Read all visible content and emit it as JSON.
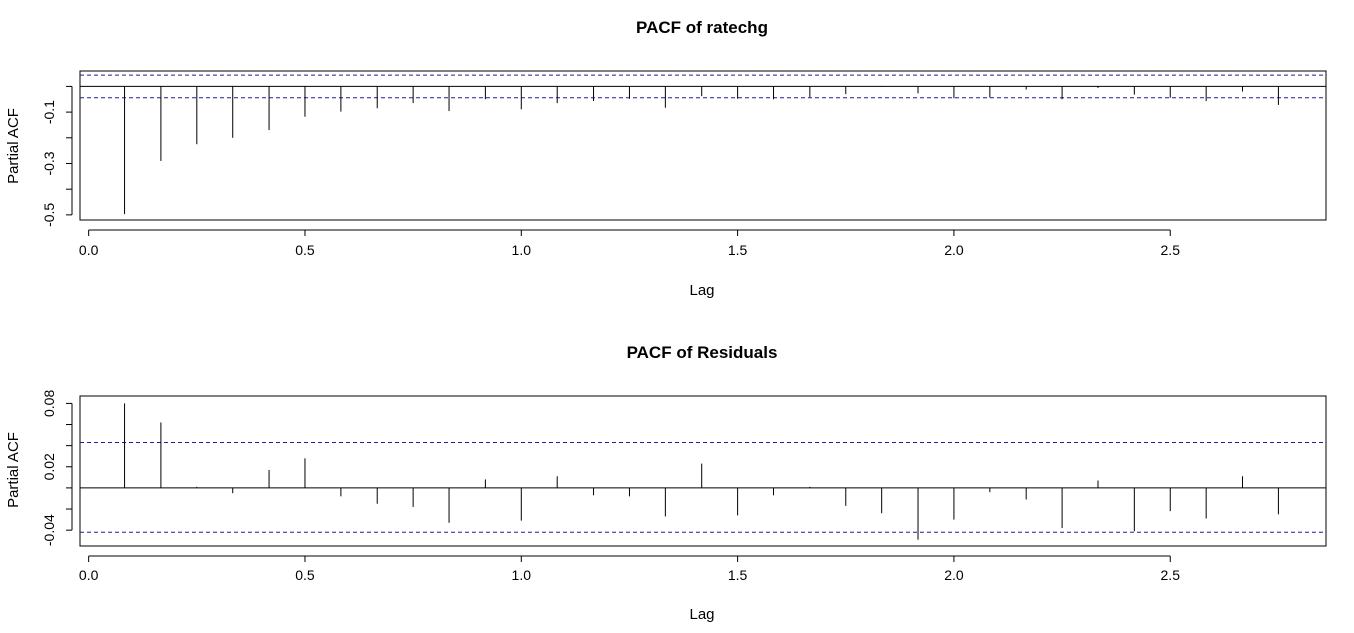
{
  "chart_data": [
    {
      "type": "bar",
      "title": "PACF of ratechg",
      "xlabel": "Lag",
      "ylabel": "Partial ACF",
      "xlim": [
        -0.02,
        2.86
      ],
      "ylim": [
        -0.52,
        0.06
      ],
      "x_ticks": [
        "0.0",
        "0.5",
        "1.0",
        "1.5",
        "2.0",
        "2.5"
      ],
      "y_ticks": [
        "-0.5",
        "-0.3",
        "-0.1"
      ],
      "y_tick_values": [
        -0.5,
        -0.4,
        -0.3,
        -0.2,
        -0.1,
        0.0
      ],
      "confidence_bounds": [
        0.044,
        -0.044
      ],
      "lags": [
        0.083,
        0.167,
        0.25,
        0.333,
        0.417,
        0.5,
        0.583,
        0.667,
        0.75,
        0.833,
        0.917,
        1.0,
        1.083,
        1.167,
        1.25,
        1.333,
        1.417,
        1.5,
        1.583,
        1.667,
        1.75,
        1.833,
        1.917,
        2.0,
        2.083,
        2.167,
        2.25,
        2.333,
        2.417,
        2.5,
        2.583,
        2.667,
        2.75
      ],
      "values": [
        -0.497,
        -0.29,
        -0.225,
        -0.2,
        -0.17,
        -0.118,
        -0.098,
        -0.085,
        -0.065,
        -0.096,
        -0.05,
        -0.089,
        -0.065,
        -0.057,
        -0.048,
        -0.083,
        -0.038,
        -0.048,
        -0.05,
        -0.042,
        -0.03,
        -0.002,
        -0.027,
        -0.046,
        -0.043,
        -0.012,
        -0.05,
        -0.006,
        -0.032,
        -0.044,
        -0.057,
        -0.02,
        -0.072
      ]
    },
    {
      "type": "bar",
      "title": "PACF of Residuals",
      "xlabel": "Lag",
      "ylabel": "Partial ACF",
      "xlim": [
        -0.02,
        2.86
      ],
      "ylim": [
        -0.055,
        0.087
      ],
      "x_ticks": [
        "0.0",
        "0.5",
        "1.0",
        "1.5",
        "2.0",
        "2.5"
      ],
      "y_ticks": [
        "-0.04",
        "0.02",
        "0.08"
      ],
      "y_tick_values": [
        -0.04,
        -0.02,
        0.0,
        0.02,
        0.04,
        0.06,
        0.08
      ],
      "confidence_bounds": [
        0.043,
        -0.042
      ],
      "lags": [
        0.083,
        0.167,
        0.25,
        0.333,
        0.417,
        0.5,
        0.583,
        0.667,
        0.75,
        0.833,
        0.917,
        1.0,
        1.083,
        1.167,
        1.25,
        1.333,
        1.417,
        1.5,
        1.583,
        1.667,
        1.75,
        1.833,
        1.917,
        2.0,
        2.083,
        2.167,
        2.25,
        2.333,
        2.417,
        2.5,
        2.583,
        2.667,
        2.75
      ],
      "values": [
        0.08,
        0.062,
        0.001,
        -0.005,
        0.017,
        0.028,
        -0.008,
        -0.015,
        -0.018,
        -0.033,
        0.008,
        -0.031,
        0.011,
        -0.007,
        -0.008,
        -0.027,
        0.023,
        -0.026,
        -0.007,
        0.001,
        -0.017,
        -0.024,
        -0.049,
        -0.03,
        -0.004,
        -0.011,
        -0.038,
        0.007,
        -0.041,
        -0.022,
        -0.029,
        0.011,
        -0.025
      ]
    }
  ]
}
